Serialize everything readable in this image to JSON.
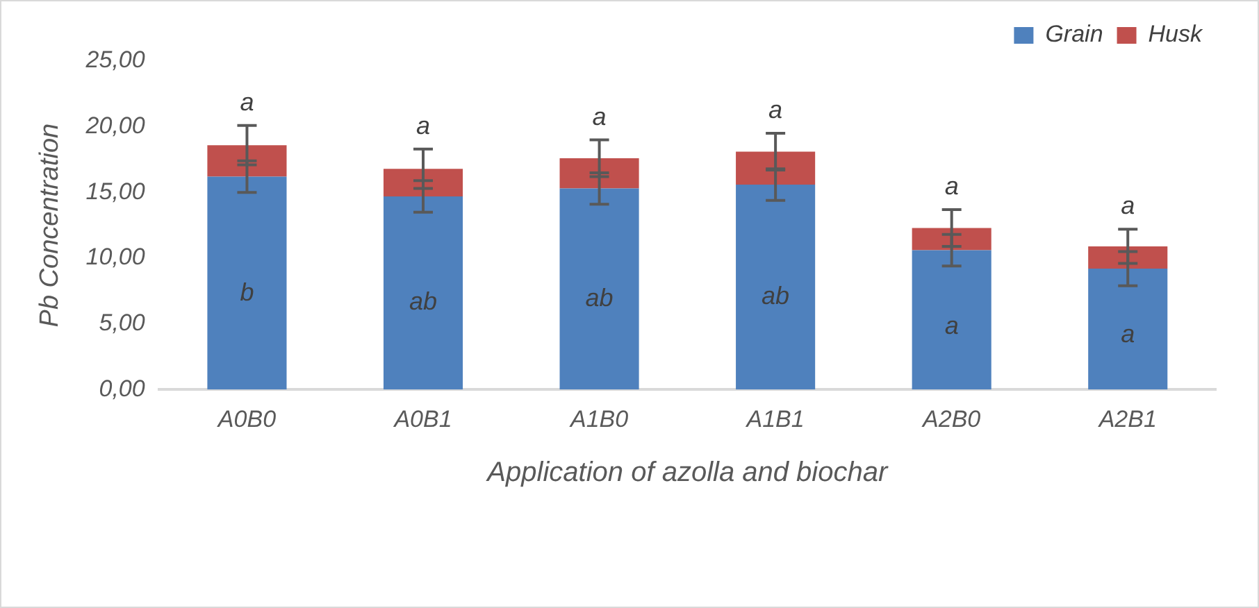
{
  "chart_data": {
    "type": "bar",
    "stacked": true,
    "xlabel": "Application of azolla and biochar",
    "ylabel": "Pb Concentration",
    "categories": [
      "A0B0",
      "A0B1",
      "A1B0",
      "A1B1",
      "A2B0",
      "A2B1"
    ],
    "series": [
      {
        "name": "Grain",
        "color": "#4f81bd",
        "values": [
          16.2,
          14.7,
          15.3,
          15.6,
          10.6,
          9.2
        ],
        "errors": [
          1.2,
          1.2,
          1.2,
          1.2,
          1.2,
          1.3
        ]
      },
      {
        "name": "Husk",
        "color": "#c0504d",
        "values": [
          2.4,
          2.1,
          2.3,
          2.5,
          1.7,
          1.7
        ],
        "errors": [
          1.5,
          1.5,
          1.4,
          1.4,
          1.4,
          1.3
        ]
      }
    ],
    "ylim": [
      0,
      25
    ],
    "yticks": [
      {
        "value": 0,
        "label": "0,00"
      },
      {
        "value": 5,
        "label": "5,00"
      },
      {
        "value": 10,
        "label": "10,00"
      },
      {
        "value": 15,
        "label": "15,00"
      },
      {
        "value": 20,
        "label": "20,00"
      },
      {
        "value": 25,
        "label": "25,00"
      }
    ],
    "grid": false,
    "legend": "top right",
    "annotations": [
      "a",
      "a",
      "a",
      "a",
      "a",
      "a",
      "b",
      "ab",
      "ab",
      "ab",
      "a",
      "a"
    ]
  }
}
